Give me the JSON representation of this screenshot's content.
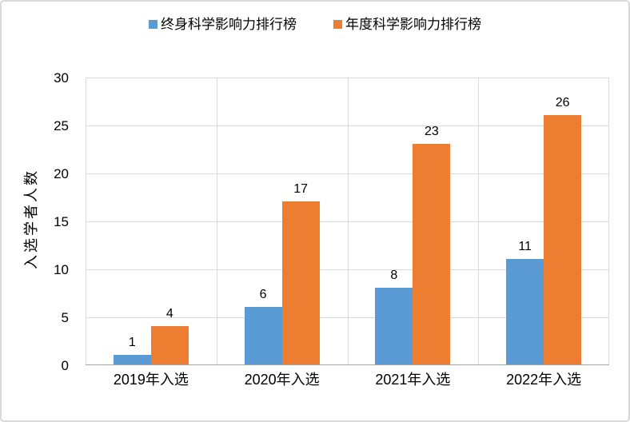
{
  "chart_data": {
    "type": "bar",
    "title": "",
    "xlabel": "",
    "ylabel": "入选学者人数",
    "categories": [
      "2019年入选",
      "2020年入选",
      "2021年入选",
      "2022年入选"
    ],
    "series": [
      {
        "name": "终身科学影响力排行榜",
        "color": "#5B9BD5",
        "values": [
          1,
          6,
          8,
          11
        ]
      },
      {
        "name": "年度科学影响力排行榜",
        "color": "#ED7D31",
        "values": [
          4,
          17,
          23,
          26
        ]
      }
    ],
    "ylim": [
      0,
      30
    ],
    "yticks": [
      0,
      5,
      10,
      15,
      20,
      25,
      30
    ],
    "grid": true,
    "legend_position": "top",
    "data_labels": true
  },
  "colors": {
    "gridline": "#D9D9D9",
    "axis_line": "#A6A6A6",
    "text": "#000000",
    "frame_border": "#D9D9D9",
    "background": "#FFFFFF"
  }
}
